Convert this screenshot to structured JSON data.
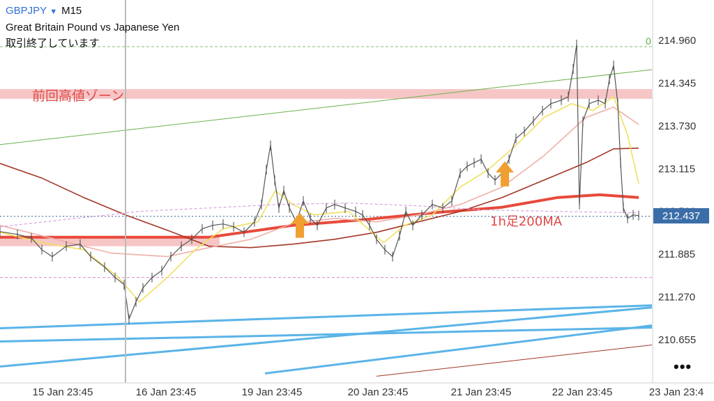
{
  "header": {
    "symbol": "GBPJPY",
    "timeframe": "M15",
    "description": "Great Britain Pound vs Japanese Yen",
    "status": "取引終了しています"
  },
  "chart_data": {
    "type": "candlestick",
    "title": "GBPJPY M15",
    "subtitle": "Great Britain Pound vs Japanese Yen",
    "y_ticks": [
      "214.960",
      "214.345",
      "213.730",
      "213.115",
      "212.500",
      "211.885",
      "211.270",
      "210.655"
    ],
    "ylim": [
      210.25,
      215.4
    ],
    "x_ticks": [
      "15 Jan 23:45",
      "16 Jan 23:45",
      "19 Jan 23:45",
      "20 Jan 23:45",
      "21 Jan 23:45",
      "22 Jan 23:45",
      "23 Jan 23:4"
    ],
    "current_price": "212.437",
    "grid": false,
    "price_path": [
      [
        0,
        212.21
      ],
      [
        25,
        212.17
      ],
      [
        45,
        212.12
      ],
      [
        60,
        211.95
      ],
      [
        75,
        211.85
      ],
      [
        95,
        212.0
      ],
      [
        115,
        212.03
      ],
      [
        130,
        211.85
      ],
      [
        150,
        211.7
      ],
      [
        165,
        211.55
      ],
      [
        178,
        211.45
      ],
      [
        185,
        210.95
      ],
      [
        195,
        211.2
      ],
      [
        205,
        211.4
      ],
      [
        218,
        211.55
      ],
      [
        232,
        211.65
      ],
      [
        245,
        211.85
      ],
      [
        260,
        212.0
      ],
      [
        275,
        212.1
      ],
      [
        290,
        212.25
      ],
      [
        305,
        212.3
      ],
      [
        320,
        212.32
      ],
      [
        335,
        212.28
      ],
      [
        350,
        212.2
      ],
      [
        365,
        212.35
      ],
      [
        375,
        212.6
      ],
      [
        382,
        213.1
      ],
      [
        388,
        213.45
      ],
      [
        394,
        212.95
      ],
      [
        400,
        212.55
      ],
      [
        407,
        212.8
      ],
      [
        415,
        212.55
      ],
      [
        425,
        212.35
      ],
      [
        435,
        212.65
      ],
      [
        445,
        212.4
      ],
      [
        455,
        212.3
      ],
      [
        468,
        212.55
      ],
      [
        480,
        212.6
      ],
      [
        495,
        212.55
      ],
      [
        510,
        212.5
      ],
      [
        520,
        212.45
      ],
      [
        530,
        212.3
      ],
      [
        540,
        212.1
      ],
      [
        552,
        211.95
      ],
      [
        563,
        211.85
      ],
      [
        573,
        212.15
      ],
      [
        582,
        212.5
      ],
      [
        592,
        212.3
      ],
      [
        605,
        212.45
      ],
      [
        620,
        212.6
      ],
      [
        635,
        212.55
      ],
      [
        648,
        212.65
      ],
      [
        660,
        213.05
      ],
      [
        670,
        213.15
      ],
      [
        680,
        213.2
      ],
      [
        690,
        213.25
      ],
      [
        700,
        213.05
      ],
      [
        710,
        212.95
      ],
      [
        720,
        213.05
      ],
      [
        730,
        213.25
      ],
      [
        740,
        213.55
      ],
      [
        752,
        213.65
      ],
      [
        765,
        213.8
      ],
      [
        778,
        213.95
      ],
      [
        790,
        214.05
      ],
      [
        805,
        214.1
      ],
      [
        815,
        214.15
      ],
      [
        822,
        214.55
      ],
      [
        827,
        214.9
      ],
      [
        831,
        212.6
      ],
      [
        836,
        213.8
      ],
      [
        845,
        214.05
      ],
      [
        858,
        214.1
      ],
      [
        868,
        214.05
      ],
      [
        874,
        214.4
      ],
      [
        880,
        214.6
      ],
      [
        886,
        214.05
      ],
      [
        890,
        213.2
      ],
      [
        894,
        212.55
      ],
      [
        900,
        212.4
      ],
      [
        908,
        212.45
      ],
      [
        916,
        212.44
      ]
    ],
    "moving_averages": [
      {
        "name": "1h足200MA",
        "color": "#e8493a",
        "points": [
          [
            0,
            212.13
          ],
          [
            300,
            212.13
          ],
          [
            420,
            212.3
          ],
          [
            520,
            212.38
          ],
          [
            620,
            212.48
          ],
          [
            720,
            212.56
          ],
          [
            800,
            212.7
          ],
          [
            860,
            212.74
          ],
          [
            916,
            212.7
          ]
        ]
      },
      {
        "name": "",
        "color": "#a33525",
        "points": [
          [
            0,
            213.19
          ],
          [
            60,
            212.98
          ],
          [
            120,
            212.7
          ],
          [
            180,
            212.45
          ],
          [
            240,
            212.23
          ],
          [
            300,
            212.0
          ],
          [
            360,
            211.98
          ],
          [
            420,
            212.03
          ],
          [
            480,
            212.1
          ],
          [
            540,
            212.2
          ],
          [
            600,
            212.35
          ],
          [
            660,
            212.5
          ],
          [
            720,
            212.7
          ],
          [
            780,
            212.95
          ],
          [
            840,
            213.2
          ],
          [
            880,
            213.4
          ],
          [
            916,
            213.41
          ]
        ]
      },
      {
        "name": "",
        "color": "#eeb0a8",
        "points": [
          [
            0,
            212.3
          ],
          [
            80,
            212.1
          ],
          [
            160,
            211.9
          ],
          [
            240,
            211.85
          ],
          [
            300,
            211.98
          ],
          [
            360,
            212.1
          ],
          [
            420,
            212.33
          ],
          [
            480,
            212.4
          ],
          [
            540,
            212.35
          ],
          [
            600,
            212.45
          ],
          [
            660,
            212.6
          ],
          [
            720,
            212.85
          ],
          [
            780,
            213.3
          ],
          [
            840,
            213.85
          ],
          [
            880,
            214.0
          ],
          [
            916,
            213.75
          ]
        ]
      },
      {
        "name": "",
        "color": "#f0e060",
        "points": [
          [
            0,
            212.2
          ],
          [
            60,
            212.05
          ],
          [
            120,
            211.95
          ],
          [
            170,
            211.55
          ],
          [
            200,
            211.2
          ],
          [
            240,
            211.55
          ],
          [
            280,
            211.95
          ],
          [
            320,
            212.25
          ],
          [
            370,
            212.35
          ],
          [
            395,
            212.8
          ],
          [
            420,
            212.6
          ],
          [
            450,
            212.45
          ],
          [
            500,
            212.5
          ],
          [
            550,
            212.05
          ],
          [
            580,
            212.3
          ],
          [
            620,
            212.45
          ],
          [
            660,
            212.85
          ],
          [
            700,
            213.1
          ],
          [
            740,
            213.45
          ],
          [
            780,
            213.85
          ],
          [
            820,
            214.05
          ],
          [
            850,
            213.95
          ],
          [
            880,
            214.15
          ],
          [
            900,
            213.6
          ],
          [
            916,
            212.9
          ]
        ]
      },
      {
        "name": "",
        "color": "#d9a0e0",
        "points": [
          [
            0,
            212.28
          ],
          [
            200,
            212.5
          ],
          [
            400,
            212.6
          ],
          [
            500,
            212.62
          ],
          [
            600,
            212.58
          ],
          [
            700,
            212.52
          ],
          [
            800,
            212.5
          ],
          [
            916,
            212.48
          ]
        ]
      }
    ],
    "trendlines": [
      {
        "color": "#6ab04c",
        "points": [
          [
            0,
            213.46
          ],
          [
            935,
            214.54
          ]
        ]
      },
      {
        "color": "#5ab4e8",
        "points": [
          [
            0,
            210.82
          ],
          [
            935,
            211.15
          ]
        ]
      },
      {
        "color": "#5ab4e8",
        "points": [
          [
            0,
            210.63
          ],
          [
            935,
            210.83
          ]
        ]
      },
      {
        "color": "#5ab4e8",
        "points": [
          [
            0,
            210.27
          ],
          [
            935,
            211.12
          ]
        ]
      },
      {
        "color": "#5ab4e8",
        "points": [
          [
            380,
            210.17
          ],
          [
            935,
            210.86
          ]
        ]
      },
      {
        "color": "#a33525",
        "points": [
          [
            540,
            210.13
          ],
          [
            935,
            210.58
          ]
        ]
      }
    ],
    "horizontal_levels": [
      {
        "price": 214.87,
        "style": "dashed",
        "color": "#7fbf6a",
        "label": "0"
      },
      {
        "price": 212.43,
        "style": "dotted",
        "color": "#2f5f8f"
      },
      {
        "price": 211.55,
        "style": "dashed",
        "color": "#d98ad0"
      }
    ],
    "zones": [
      {
        "label": "前回高値ゾーン",
        "x_from": 0,
        "x_to": 935,
        "y_from": 214.13,
        "y_to": 214.26,
        "color": "#f6c6c6"
      },
      {
        "label": "",
        "x_from": 0,
        "x_to": 315,
        "y_from": 212.03,
        "y_to": 212.14,
        "color": "#f6c6c6"
      }
    ],
    "annotations": [
      {
        "type": "arrow-up",
        "x": 430,
        "y": 212.12,
        "color": "#f0a030"
      },
      {
        "type": "arrow-up",
        "x": 724,
        "y": 212.86,
        "color": "#f0a030"
      }
    ]
  }
}
